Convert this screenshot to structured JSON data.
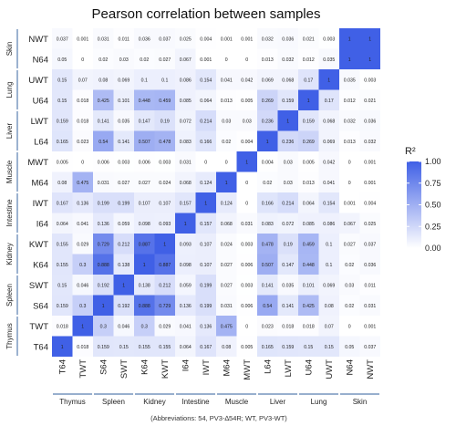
{
  "chart_data": {
    "type": "heatmap",
    "title": "Pearson correlation between samples",
    "footnote": "(Abbreviations: 54, PV3-∆54R; WT, PV3-WT)",
    "labels": [
      "T64",
      "TWT",
      "S64",
      "SWT",
      "K64",
      "KWT",
      "I64",
      "IWT",
      "M64",
      "MWT",
      "L64",
      "LWT",
      "U64",
      "UWT",
      "N64",
      "NWT"
    ],
    "row_labels_top_to_bottom": [
      "NWT",
      "N64",
      "UWT",
      "U64",
      "LWT",
      "L64",
      "MWT",
      "M64",
      "IWT",
      "I64",
      "KWT",
      "K64",
      "SWT",
      "S64",
      "TWT",
      "T64"
    ],
    "groups": [
      {
        "name": "Thymus",
        "members": [
          "T64",
          "TWT"
        ]
      },
      {
        "name": "Spleen",
        "members": [
          "S64",
          "SWT"
        ]
      },
      {
        "name": "Kidney",
        "members": [
          "K64",
          "KWT"
        ]
      },
      {
        "name": "Intestine",
        "members": [
          "I64",
          "IWT"
        ]
      },
      {
        "name": "Muscle",
        "members": [
          "M64",
          "MWT"
        ]
      },
      {
        "name": "Liver",
        "members": [
          "L64",
          "LWT"
        ]
      },
      {
        "name": "Lung",
        "members": [
          "U64",
          "UWT"
        ]
      },
      {
        "name": "Skin",
        "members": [
          "N64",
          "NWT"
        ]
      }
    ],
    "matrix": [
      [
        1,
        0.018,
        0.159,
        0.15,
        0.155,
        0.155,
        0.064,
        0.167,
        0.08,
        0.005,
        0.165,
        0.159,
        0.15,
        0.15,
        0.05,
        0.037
      ],
      [
        0.018,
        1,
        0.3,
        0.046,
        0.3,
        0.029,
        0.041,
        0.136,
        0.475,
        0.0,
        0.023,
        0.018,
        0.018,
        0.07,
        0.0,
        0.001
      ],
      [
        0.159,
        0.3,
        1,
        0.192,
        0.888,
        0.729,
        0.136,
        0.199,
        0.031,
        0.006,
        0.54,
        0.141,
        0.425,
        0.08,
        0.02,
        0.031
      ],
      [
        0.15,
        0.046,
        0.192,
        1,
        0.138,
        0.212,
        0.059,
        0.199,
        0.027,
        0.003,
        0.141,
        0.035,
        0.101,
        0.069,
        0.03,
        0.011
      ],
      [
        0.155,
        0.3,
        0.888,
        0.138,
        1,
        0.887,
        0.098,
        0.107,
        0.027,
        0.006,
        0.507,
        0.147,
        0.448,
        0.1,
        0.02,
        0.036
      ],
      [
        0.155,
        0.029,
        0.729,
        0.212,
        0.887,
        1,
        0.093,
        0.107,
        0.024,
        0.003,
        0.478,
        0.19,
        0.459,
        0.1,
        0.027,
        0.037
      ],
      [
        0.064,
        0.041,
        0.136,
        0.059,
        0.098,
        0.093,
        1,
        0.157,
        0.068,
        0.031,
        0.083,
        0.072,
        0.085,
        0.086,
        0.067,
        0.025
      ],
      [
        0.167,
        0.136,
        0.199,
        0.199,
        0.107,
        0.107,
        0.157,
        1,
        0.124,
        0.0,
        0.166,
        0.214,
        0.064,
        0.154,
        0.001,
        0.004
      ],
      [
        0.08,
        0.475,
        0.031,
        0.027,
        0.027,
        0.024,
        0.068,
        0.124,
        1,
        0.0,
        0.02,
        0.03,
        0.013,
        0.041,
        0.0,
        0.001
      ],
      [
        0.005,
        0.0,
        0.006,
        0.003,
        0.006,
        0.003,
        0.031,
        0.0,
        0.0,
        1,
        0.004,
        0.03,
        0.005,
        0.042,
        0.0,
        0.001
      ],
      [
        0.165,
        0.023,
        0.54,
        0.141,
        0.507,
        0.478,
        0.083,
        0.166,
        0.02,
        0.004,
        1,
        0.236,
        0.269,
        0.069,
        0.013,
        0.032
      ],
      [
        0.159,
        0.018,
        0.141,
        0.035,
        0.147,
        0.19,
        0.072,
        0.214,
        0.03,
        0.03,
        0.236,
        1,
        0.159,
        0.068,
        0.032,
        0.036
      ],
      [
        0.15,
        0.018,
        0.425,
        0.101,
        0.448,
        0.459,
        0.085,
        0.064,
        0.013,
        0.005,
        0.269,
        0.159,
        1,
        0.17,
        0.012,
        0.021
      ],
      [
        0.15,
        0.07,
        0.08,
        0.069,
        0.1,
        0.1,
        0.086,
        0.154,
        0.041,
        0.042,
        0.069,
        0.068,
        0.17,
        1,
        0.035,
        0.003
      ],
      [
        0.05,
        0.0,
        0.02,
        0.03,
        0.02,
        0.027,
        0.067,
        0.001,
        0.0,
        0.0,
        0.013,
        0.032,
        0.012,
        0.035,
        1,
        1
      ],
      [
        0.037,
        0.001,
        0.031,
        0.011,
        0.036,
        0.037,
        0.025,
        0.004,
        0.001,
        0.001,
        0.032,
        0.036,
        0.021,
        0.003,
        1,
        1
      ]
    ],
    "legend": {
      "title": "R²",
      "ticks": [
        1.0,
        0.75,
        0.5,
        0.25,
        0.0
      ],
      "tick_labels": [
        "1.00",
        "0.75",
        "0.50",
        "0.25",
        "0.00"
      ]
    },
    "colors": {
      "low": "#ffffff",
      "high": "#4060e6",
      "group_line": "#5b7fb0"
    }
  }
}
